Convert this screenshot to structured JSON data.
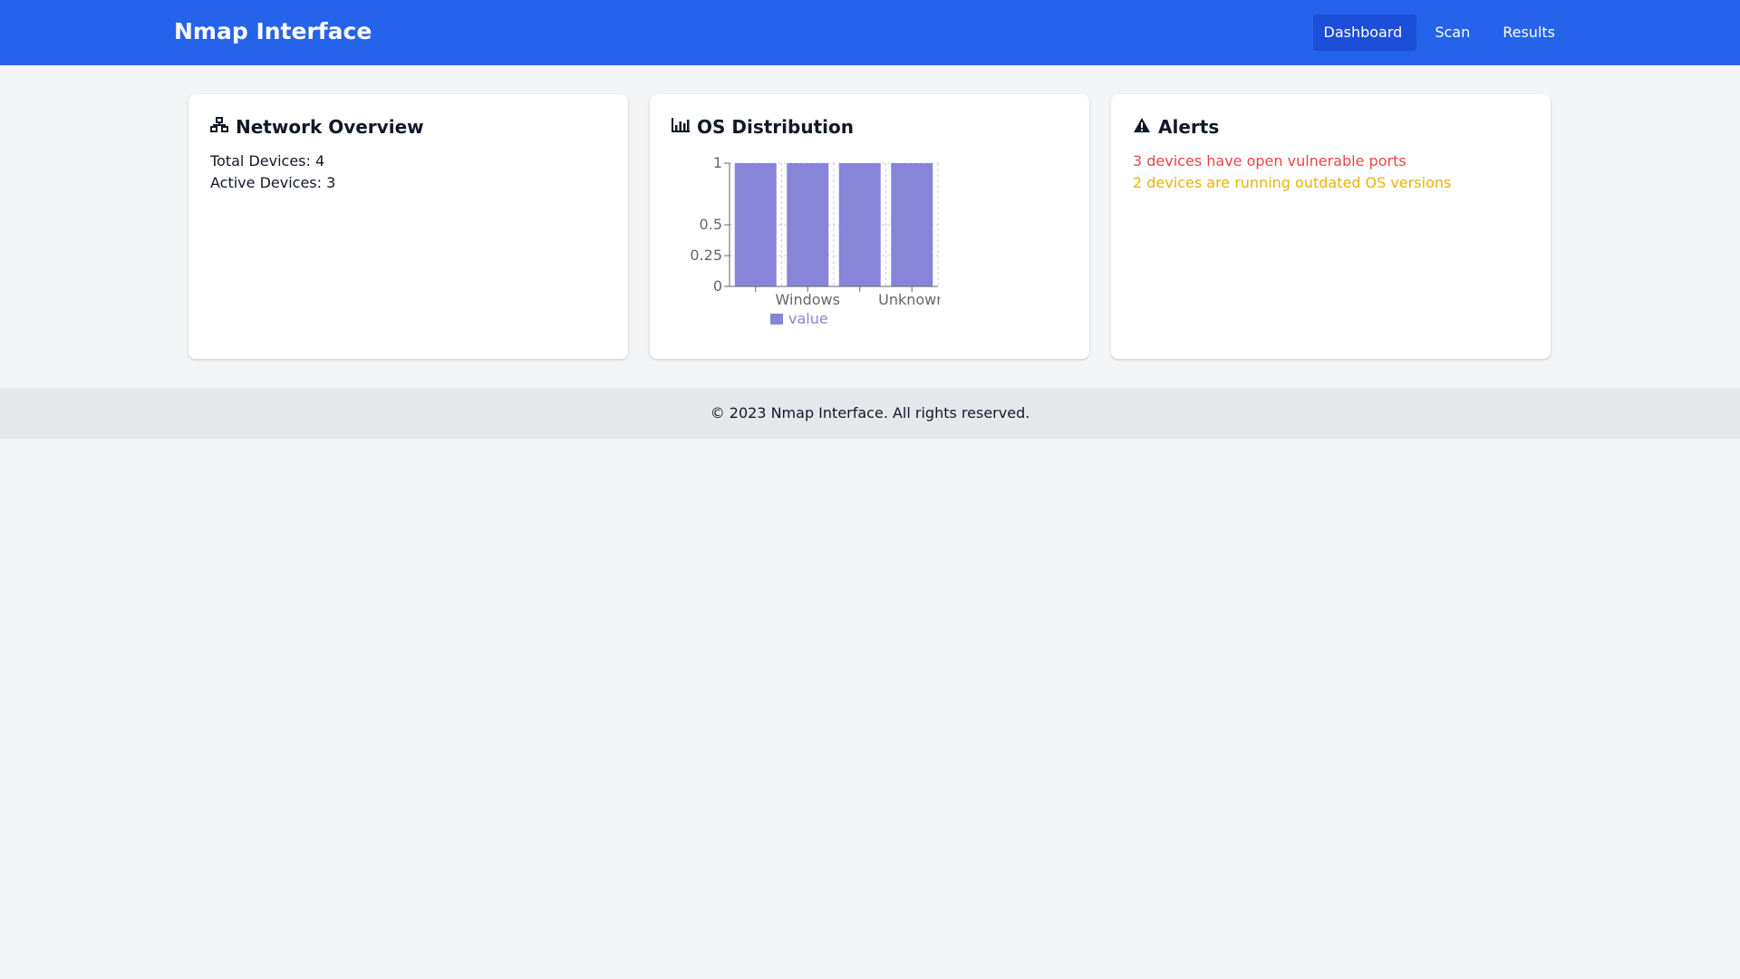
{
  "header": {
    "title": "Nmap Interface",
    "nav": [
      {
        "label": "Dashboard",
        "active": true
      },
      {
        "label": "Scan",
        "active": false
      },
      {
        "label": "Results",
        "active": false
      }
    ]
  },
  "network_overview": {
    "title": "Network Overview",
    "icon": "network-icon",
    "total_devices": "Total Devices: 4",
    "active_devices": "Active Devices: 3"
  },
  "os_distribution": {
    "title": "OS Distribution",
    "icon": "bar-chart-icon"
  },
  "alerts": {
    "title": "Alerts",
    "icon": "warning-icon",
    "items": [
      {
        "text": "3 devices have open vulnerable ports",
        "color": "#ef4444"
      },
      {
        "text": "2 devices are running outdated OS versions",
        "color": "#eab308"
      }
    ]
  },
  "footer": {
    "text": "© 2023 Nmap Interface. All rights reserved."
  },
  "chart_data": {
    "type": "bar",
    "categories": [
      "",
      "Windows",
      "",
      "Unknown"
    ],
    "values": [
      1,
      1,
      1,
      1
    ],
    "series": [
      {
        "name": "value",
        "values": [
          1,
          1,
          1,
          1
        ]
      }
    ],
    "y_ticks": [
      0,
      0.25,
      0.5,
      1
    ],
    "ylim": [
      0,
      1
    ],
    "grid": true,
    "legend": "bottom",
    "bar_color": "#8884d8",
    "axis_color": "#666666"
  }
}
